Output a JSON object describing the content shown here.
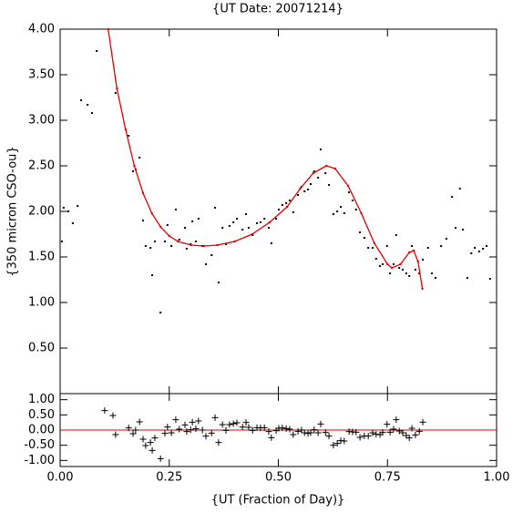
{
  "chart_data": [
    {
      "type": "scatter",
      "title": "{UT Date: 20071214}",
      "ylabel": "{350 micron CSO-ou}",
      "xlim": [
        0,
        1
      ],
      "ylim": [
        0,
        4
      ],
      "yticks": [
        {
          "value": 0.5,
          "label": "0.50"
        },
        {
          "value": 1,
          "label": "1.00"
        },
        {
          "value": 1.5,
          "label": "1.50"
        },
        {
          "value": 2,
          "label": "2.00"
        },
        {
          "value": 2.5,
          "label": "2.50"
        },
        {
          "value": 3,
          "label": "3.00"
        },
        {
          "value": 3.5,
          "label": "3.50"
        },
        {
          "value": 4,
          "label": "4.00"
        }
      ],
      "series": [
        {
          "color": "#000000",
          "marker": "dot",
          "x": [
            0.004,
            0.008,
            0.019,
            0.029,
            0.04,
            0.048,
            0.063,
            0.073,
            0.084,
            0.127,
            0.157,
            0.167,
            0.173,
            0.182,
            0.19,
            0.196,
            0.207,
            0.211,
            0.217,
            0.23,
            0.24,
            0.246,
            0.255,
            0.265,
            0.273,
            0.286,
            0.29,
            0.299,
            0.303,
            0.311,
            0.317,
            0.326,
            0.334,
            0.347,
            0.355,
            0.363,
            0.372,
            0.38,
            0.388,
            0.397,
            0.405,
            0.418,
            0.426,
            0.432,
            0.441,
            0.451,
            0.459,
            0.468,
            0.478,
            0.484,
            0.495,
            0.501,
            0.509,
            0.518,
            0.526,
            0.534,
            0.545,
            0.553,
            0.56,
            0.568,
            0.574,
            0.582,
            0.591,
            0.597,
            0.608,
            0.616,
            0.626,
            0.635,
            0.643,
            0.651,
            0.662,
            0.67,
            0.678,
            0.687,
            0.697,
            0.706,
            0.716,
            0.724,
            0.733,
            0.739,
            0.749,
            0.756,
            0.764,
            0.77,
            0.777,
            0.785,
            0.793,
            0.8,
            0.806,
            0.814,
            0.823,
            0.831,
            0.843,
            0.852,
            0.86,
            0.873,
            0.885,
            0.898,
            0.906,
            0.916,
            0.923,
            0.933,
            0.942,
            0.95,
            0.96,
            0.969,
            0.977,
            0.985
          ],
          "values": [
            1.67,
            2.04,
            2.0,
            1.87,
            2.06,
            3.22,
            3.17,
            3.08,
            3.76,
            3.3,
            2.83,
            2.44,
            2.46,
            2.59,
            1.9,
            1.62,
            1.6,
            1.3,
            1.67,
            0.89,
            1.67,
            1.85,
            1.62,
            2.02,
            1.69,
            1.82,
            1.59,
            1.64,
            1.89,
            1.67,
            1.92,
            1.62,
            1.42,
            1.52,
            2.04,
            1.22,
            1.82,
            1.64,
            1.84,
            1.88,
            1.92,
            1.8,
            1.97,
            1.82,
            1.74,
            1.87,
            1.88,
            1.92,
            1.82,
            1.65,
            1.92,
            2.02,
            2.07,
            2.09,
            2.12,
            1.99,
            2.18,
            2.27,
            2.22,
            2.24,
            2.3,
            2.44,
            2.37,
            2.68,
            2.42,
            2.29,
            1.97,
            2.0,
            2.05,
            1.98,
            2.21,
            2.12,
            2.02,
            1.77,
            1.71,
            1.6,
            1.6,
            1.48,
            1.4,
            1.42,
            1.62,
            1.32,
            1.42,
            1.74,
            1.38,
            1.36,
            1.32,
            1.29,
            1.62,
            1.36,
            1.32,
            1.47,
            1.6,
            1.32,
            1.27,
            1.62,
            1.7,
            2.16,
            1.82,
            2.25,
            1.8,
            1.27,
            1.54,
            1.6,
            1.56,
            1.59,
            1.62,
            1.26
          ]
        },
        {
          "color": "#e00000",
          "marker": "line",
          "x": [
            0.11,
            0.13,
            0.15,
            0.17,
            0.19,
            0.21,
            0.23,
            0.25,
            0.27,
            0.3,
            0.33,
            0.36,
            0.4,
            0.44,
            0.48,
            0.52,
            0.55,
            0.58,
            0.61,
            0.63,
            0.66,
            0.69,
            0.72,
            0.75,
            0.76,
            0.78,
            0.8,
            0.81,
            0.82,
            0.83
          ],
          "values": [
            4.0,
            3.35,
            2.9,
            2.5,
            2.2,
            1.98,
            1.83,
            1.73,
            1.67,
            1.63,
            1.62,
            1.63,
            1.67,
            1.75,
            1.88,
            2.05,
            2.25,
            2.42,
            2.5,
            2.47,
            2.28,
            1.98,
            1.65,
            1.42,
            1.38,
            1.42,
            1.55,
            1.57,
            1.45,
            1.15
          ]
        }
      ]
    },
    {
      "type": "scatter",
      "xlabel": "{UT (Fraction of Day)}",
      "xlim": [
        0,
        1
      ],
      "ylim": [
        -1.2,
        1.2
      ],
      "xticks": [
        {
          "value": 0,
          "label": "0.00"
        },
        {
          "value": 0.25,
          "label": "0.25"
        },
        {
          "value": 0.5,
          "label": "0.50"
        },
        {
          "value": 0.75,
          "label": "0.75"
        },
        {
          "value": 1,
          "label": "1.00"
        }
      ],
      "yticks": [
        {
          "value": -1,
          "label": "-1.00"
        },
        {
          "value": -0.5,
          "label": "-0.50"
        },
        {
          "value": 0,
          "label": "0.00"
        },
        {
          "value": 0.5,
          "label": "0.50"
        },
        {
          "value": 1,
          "label": "1.00"
        }
      ],
      "hline": 0,
      "hline_color": "#e00000",
      "series": [
        {
          "color": "#000000",
          "marker": "plus",
          "x": [
            0.102,
            0.121,
            0.127,
            0.157,
            0.167,
            0.173,
            0.182,
            0.19,
            0.196,
            0.207,
            0.211,
            0.217,
            0.23,
            0.24,
            0.246,
            0.255,
            0.265,
            0.273,
            0.286,
            0.29,
            0.299,
            0.303,
            0.311,
            0.317,
            0.326,
            0.334,
            0.347,
            0.355,
            0.363,
            0.372,
            0.38,
            0.388,
            0.397,
            0.405,
            0.418,
            0.426,
            0.432,
            0.441,
            0.451,
            0.459,
            0.468,
            0.478,
            0.484,
            0.495,
            0.501,
            0.509,
            0.518,
            0.526,
            0.534,
            0.545,
            0.553,
            0.56,
            0.568,
            0.574,
            0.582,
            0.591,
            0.597,
            0.608,
            0.616,
            0.626,
            0.635,
            0.643,
            0.651,
            0.662,
            0.67,
            0.678,
            0.687,
            0.697,
            0.706,
            0.716,
            0.724,
            0.733,
            0.739,
            0.749,
            0.756,
            0.764,
            0.77,
            0.777,
            0.785,
            0.793,
            0.8,
            0.806,
            0.814,
            0.823,
            0.831
          ],
          "values": [
            0.64,
            0.48,
            -0.15,
            0.07,
            -0.12,
            0.0,
            0.27,
            -0.3,
            -0.51,
            -0.41,
            -0.67,
            -0.26,
            -0.94,
            -0.11,
            0.1,
            -0.09,
            0.34,
            0.03,
            0.17,
            -0.05,
            0.01,
            0.26,
            0.04,
            0.3,
            0.0,
            -0.2,
            -0.1,
            0.41,
            -0.41,
            0.18,
            -0.01,
            0.18,
            0.21,
            0.24,
            0.1,
            0.25,
            0.09,
            -0.01,
            0.08,
            0.07,
            0.08,
            -0.05,
            -0.25,
            -0.02,
            0.06,
            0.07,
            0.05,
            0.03,
            -0.15,
            -0.04,
            0.0,
            -0.09,
            -0.11,
            -0.09,
            0.01,
            -0.09,
            0.2,
            -0.08,
            -0.2,
            -0.5,
            -0.44,
            -0.35,
            -0.36,
            -0.05,
            -0.06,
            -0.07,
            -0.24,
            -0.19,
            -0.2,
            -0.09,
            -0.14,
            -0.15,
            -0.08,
            0.19,
            -0.07,
            0.03,
            0.34,
            -0.03,
            -0.09,
            -0.18,
            -0.26,
            0.06,
            -0.16,
            -0.04,
            0.26
          ]
        }
      ]
    }
  ]
}
